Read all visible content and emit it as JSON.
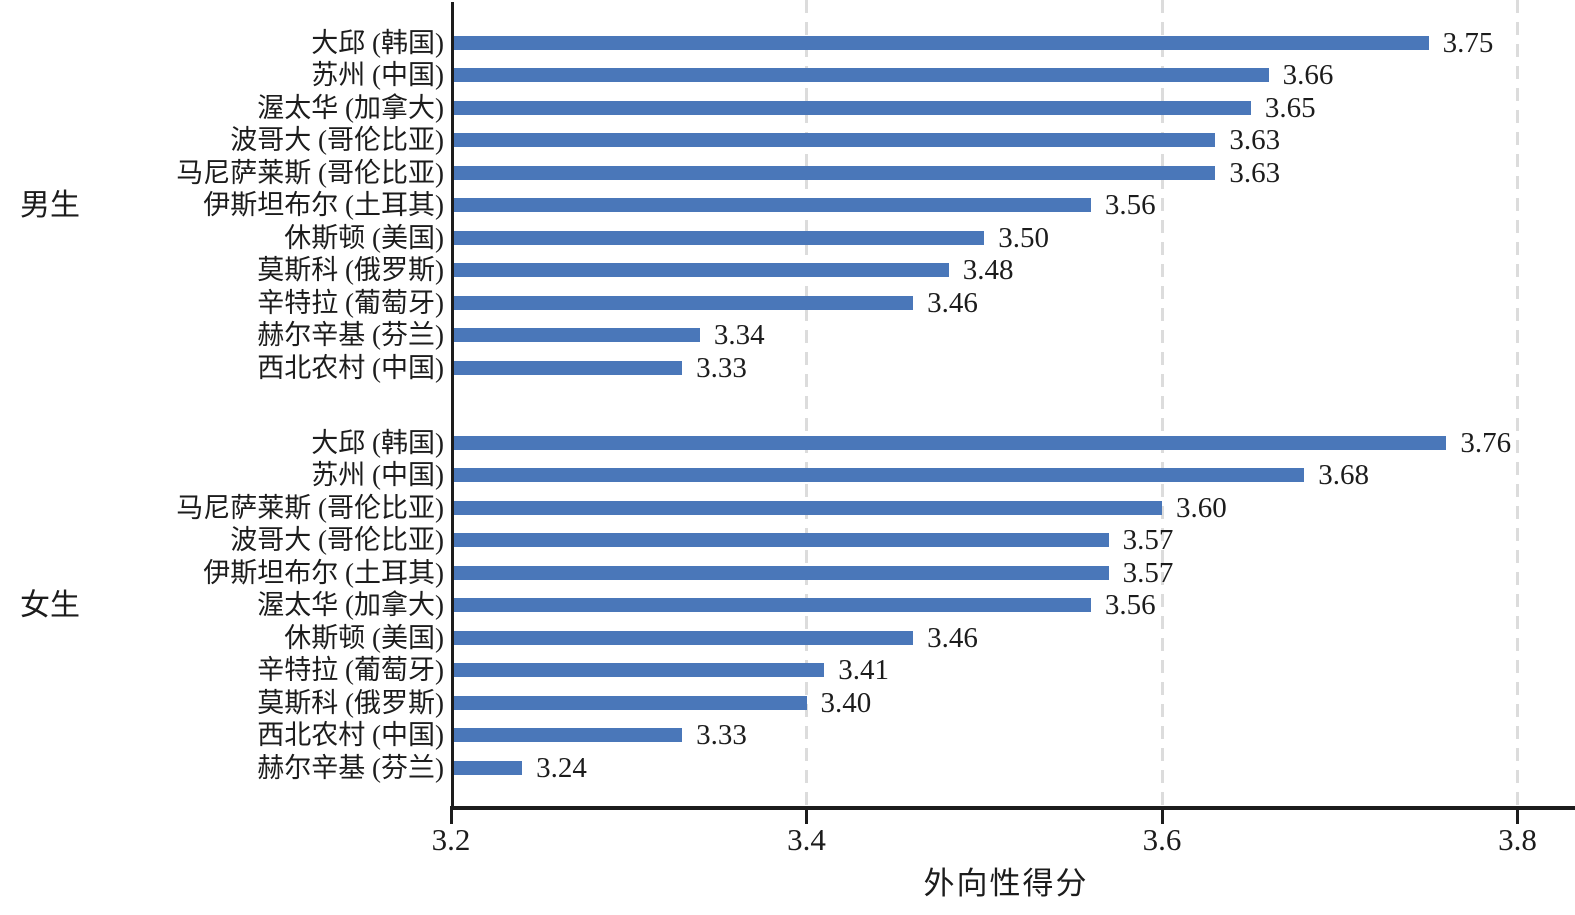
{
  "chart_data": {
    "type": "bar",
    "orientation": "horizontal",
    "title": "",
    "xlabel": "外向性得分",
    "xlim": [
      3.2,
      3.83
    ],
    "xticks": [
      "3.2",
      "3.4",
      "3.6",
      "3.8"
    ],
    "grid": "vertical dashed gridlines at 3.4, 3.6, 3.8",
    "value_labels": "numeric value shown at end of each bar, 2 decimals",
    "colors": {
      "bar": "#4a77b9",
      "axis": "#1c1c1c",
      "gridline": "#dcdcdc",
      "text": "#1c1c1c"
    },
    "groups": [
      {
        "label": "男生",
        "items": [
          {
            "category": "大邱 (韩国)",
            "value": 3.75
          },
          {
            "category": "苏州 (中国)",
            "value": 3.66
          },
          {
            "category": "渥太华 (加拿大)",
            "value": 3.65
          },
          {
            "category": "波哥大 (哥伦比亚)",
            "value": 3.63
          },
          {
            "category": "马尼萨莱斯 (哥伦比亚)",
            "value": 3.63
          },
          {
            "category": "伊斯坦布尔 (土耳其)",
            "value": 3.56
          },
          {
            "category": "休斯顿 (美国)",
            "value": 3.5
          },
          {
            "category": "莫斯科 (俄罗斯)",
            "value": 3.48
          },
          {
            "category": "辛特拉 (葡萄牙)",
            "value": 3.46
          },
          {
            "category": "赫尔辛基 (芬兰)",
            "value": 3.34
          },
          {
            "category": "西北农村 (中国)",
            "value": 3.33
          }
        ]
      },
      {
        "label": "女生",
        "items": [
          {
            "category": "大邱 (韩国)",
            "value": 3.76
          },
          {
            "category": "苏州 (中国)",
            "value": 3.68
          },
          {
            "category": "马尼萨莱斯 (哥伦比亚)",
            "value": 3.6
          },
          {
            "category": "波哥大 (哥伦比亚)",
            "value": 3.57
          },
          {
            "category": "伊斯坦布尔 (土耳其)",
            "value": 3.57
          },
          {
            "category": "渥太华 (加拿大)",
            "value": 3.56
          },
          {
            "category": "休斯顿 (美国)",
            "value": 3.46
          },
          {
            "category": "辛特拉 (葡萄牙)",
            "value": 3.41
          },
          {
            "category": "莫斯科 (俄罗斯)",
            "value": 3.4
          },
          {
            "category": "西北农村 (中国)",
            "value": 3.33
          },
          {
            "category": "赫尔辛基 (芬兰)",
            "value": 3.24
          }
        ]
      }
    ]
  }
}
